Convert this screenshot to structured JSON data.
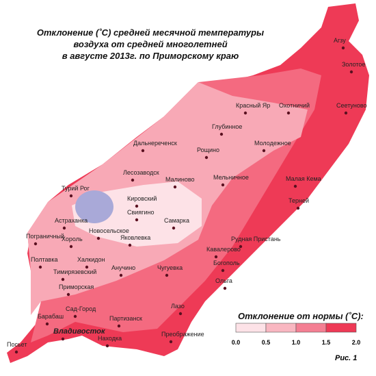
{
  "title": {
    "lines": [
      "Отклонение (˚С) средней  месячной температуры",
      "воздуха  от средней многолетней",
      "в августе 2013г. по Приморскому краю"
    ]
  },
  "places": [
    "Агзу",
    "Золотое",
    "Сеетуново",
    "Красный Яр",
    "Охотничий",
    "Глубинное",
    "Дальнереченск",
    "Рощино",
    "Молодежное",
    "Лесозаводск",
    "Малиново",
    "Мельничное",
    "Малая Кема",
    "Турий Рог",
    "Кировский",
    "Терней",
    "Свиягино",
    "Астраханка",
    "Новосельское",
    "Самарка",
    "Пограничный",
    "Хороль",
    "Яковлевка",
    "Рудная Пристань",
    "Кавалерово",
    "Полтавка",
    "Халкидон",
    "Богополь",
    "Тимирязевский",
    "Анучино",
    "Чугуевка",
    "Ольга",
    "Приморская",
    "Лазо",
    "Сад-Город",
    "Барабаш",
    "Партизанск",
    "Владивосток",
    "Находка",
    "Преображение",
    "Посьет"
  ],
  "legend": {
    "title": "Отклонение от нормы (˚С):",
    "ticks": [
      "0.0",
      "0.5",
      "1.0",
      "1.5",
      "2.0"
    ]
  },
  "figure_label": "Рис. 1"
}
